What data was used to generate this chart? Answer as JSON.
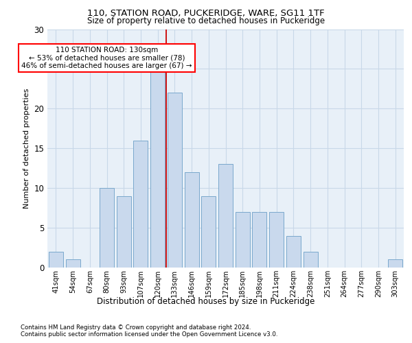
{
  "title1": "110, STATION ROAD, PUCKERIDGE, WARE, SG11 1TF",
  "title2": "Size of property relative to detached houses in Puckeridge",
  "xlabel": "Distribution of detached houses by size in Puckeridge",
  "ylabel": "Number of detached properties",
  "categories": [
    "41sqm",
    "54sqm",
    "67sqm",
    "80sqm",
    "93sqm",
    "107sqm",
    "120sqm",
    "133sqm",
    "146sqm",
    "159sqm",
    "172sqm",
    "185sqm",
    "198sqm",
    "211sqm",
    "224sqm",
    "238sqm",
    "251sqm",
    "264sqm",
    "277sqm",
    "290sqm",
    "303sqm"
  ],
  "values": [
    2,
    1,
    0,
    10,
    9,
    16,
    25,
    22,
    12,
    9,
    13,
    7,
    7,
    7,
    4,
    2,
    0,
    0,
    0,
    0,
    1
  ],
  "bar_color": "#c9d9ed",
  "bar_edge_color": "#7aa8cc",
  "grid_color": "#c8d8e8",
  "bg_color": "#e8f0f8",
  "vline_color": "#cc0000",
  "vline_x_idx": 6,
  "annotation_text": "110 STATION ROAD: 130sqm\n← 53% of detached houses are smaller (78)\n46% of semi-detached houses are larger (67) →",
  "footnote1": "Contains HM Land Registry data © Crown copyright and database right 2024.",
  "footnote2": "Contains public sector information licensed under the Open Government Licence v3.0.",
  "ylim": [
    0,
    30
  ],
  "yticks": [
    0,
    5,
    10,
    15,
    20,
    25,
    30
  ]
}
